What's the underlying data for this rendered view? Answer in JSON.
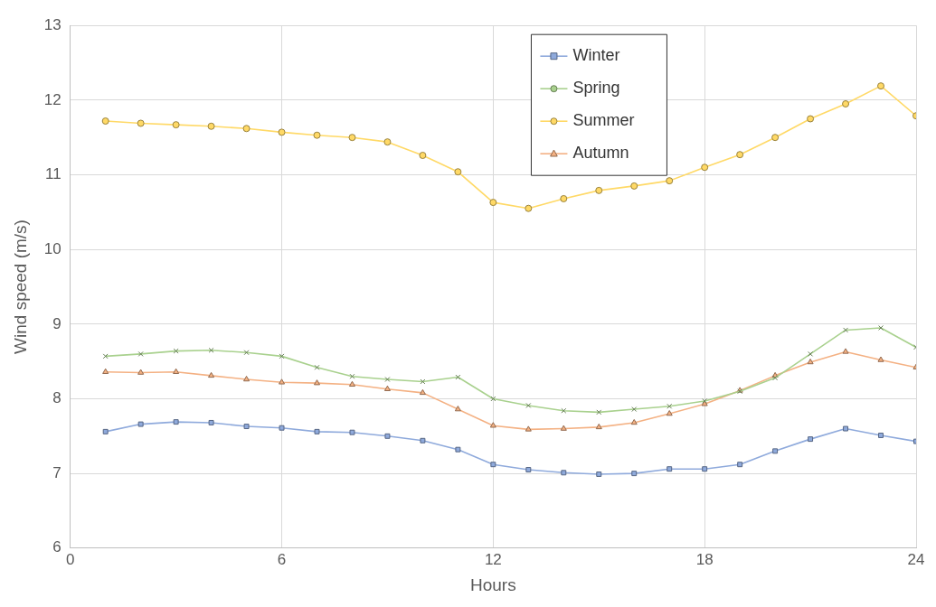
{
  "chart_data": {
    "type": "line",
    "xlabel": "Hours",
    "ylabel": "Wind speed (m/s)",
    "x": [
      1,
      2,
      3,
      4,
      5,
      6,
      7,
      8,
      9,
      10,
      11,
      12,
      13,
      14,
      15,
      16,
      17,
      18,
      19,
      20,
      21,
      22,
      23,
      24
    ],
    "xlim": [
      0,
      24
    ],
    "xticks": [
      0,
      6,
      12,
      18,
      24
    ],
    "ylim": [
      6,
      13
    ],
    "yticks": [
      6,
      7,
      8,
      9,
      10,
      11,
      12,
      13
    ],
    "grid": true,
    "legend": "top right",
    "series": [
      {
        "name": "Winter",
        "color": "#8faadc",
        "marker": "square",
        "values": [
          7.56,
          7.66,
          7.69,
          7.68,
          7.63,
          7.61,
          7.56,
          7.55,
          7.5,
          7.44,
          7.32,
          7.12,
          7.05,
          7.01,
          6.99,
          7.0,
          7.06,
          7.06,
          7.12,
          7.3,
          7.46,
          7.6,
          7.51,
          7.43
        ]
      },
      {
        "name": "Spring",
        "color": "#a9d18e",
        "marker": "cross",
        "values": [
          8.57,
          8.6,
          8.64,
          8.65,
          8.62,
          8.57,
          8.42,
          8.3,
          8.26,
          8.23,
          8.29,
          8.0,
          7.91,
          7.84,
          7.82,
          7.86,
          7.9,
          7.97,
          8.1,
          8.28,
          8.6,
          8.92,
          8.95,
          8.69
        ]
      },
      {
        "name": "Summer",
        "color": "#ffd966",
        "marker": "circle",
        "values": [
          11.72,
          11.69,
          11.67,
          11.65,
          11.62,
          11.57,
          11.53,
          11.5,
          11.44,
          11.26,
          11.04,
          10.63,
          10.55,
          10.68,
          10.79,
          10.85,
          10.92,
          11.1,
          11.27,
          11.5,
          11.75,
          11.95,
          12.19,
          11.79
        ]
      },
      {
        "name": "Autumn",
        "color": "#f4b183",
        "marker": "triangle",
        "values": [
          8.36,
          8.35,
          8.36,
          8.31,
          8.26,
          8.22,
          8.21,
          8.19,
          8.13,
          8.08,
          7.86,
          7.64,
          7.59,
          7.6,
          7.62,
          7.68,
          7.8,
          7.93,
          8.11,
          8.31,
          8.49,
          8.63,
          8.52,
          8.42
        ]
      }
    ]
  }
}
